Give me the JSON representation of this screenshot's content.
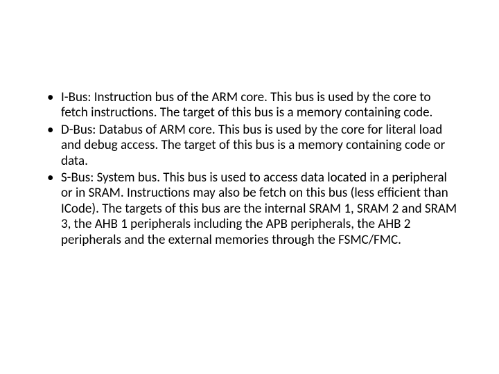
{
  "bullets": [
    {
      "text": "I-Bus: Instruction bus of the ARM core. This bus is used by the core to fetch instructions. The target of this bus is a memory containing code."
    },
    {
      "text": "D-Bus: Databus of ARM core. This bus is used by the core for literal load and debug access. The target of this bus is a memory containing code or data."
    },
    {
      "text": "S-Bus: System bus. This bus is used to access data located in a peripheral or in SRAM. Instructions may also be fetch on this bus (less efficient than ICode). The targets of this bus are the internal SRAM 1, SRAM 2 and SRAM 3, the AHB 1 peripherals including the APB peripherals, the AHB 2 peripherals and the external memories through the FSMC/FMC."
    }
  ]
}
